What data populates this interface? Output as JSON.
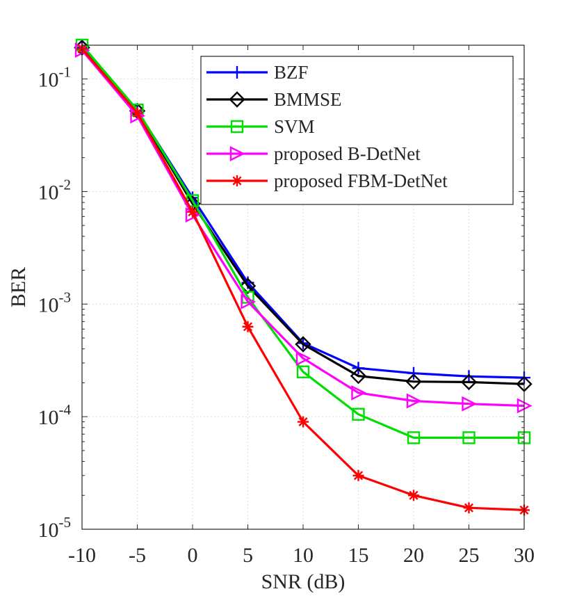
{
  "chart_data": {
    "type": "line",
    "title": "",
    "xlabel": "SNR (dB)",
    "ylabel": "BER",
    "yscale": "log",
    "xlim": [
      -10,
      30
    ],
    "ylim_exponents": [
      -5,
      -0.7
    ],
    "grid": true,
    "legend_position": "top-right",
    "x_ticks": [
      "-10",
      "-5",
      "0",
      "5",
      "10",
      "15",
      "20",
      "25",
      "30"
    ],
    "y_ticks": [
      {
        "base": "10",
        "exp": "-5",
        "value": 1e-05
      },
      {
        "base": "10",
        "exp": "-4",
        "value": 0.0001
      },
      {
        "base": "10",
        "exp": "-3",
        "value": 0.001
      },
      {
        "base": "10",
        "exp": "-2",
        "value": 0.01
      },
      {
        "base": "10",
        "exp": "-1",
        "value": 0.1
      }
    ],
    "x": [
      -10,
      -5,
      0,
      5,
      10,
      15,
      20,
      25,
      30
    ],
    "series": [
      {
        "name": "BZF",
        "color": "#0000ff",
        "marker": "plus",
        "values": [
          0.19,
          0.052,
          0.0088,
          0.00155,
          0.00045,
          0.00027,
          0.000243,
          0.000228,
          0.000222
        ]
      },
      {
        "name": "BMMSE",
        "color": "#000000",
        "marker": "diamond",
        "values": [
          0.19,
          0.052,
          0.0078,
          0.00145,
          0.00044,
          0.00023,
          0.000205,
          0.000203,
          0.000195
        ]
      },
      {
        "name": "SVM",
        "color": "#00dd00",
        "marker": "square",
        "values": [
          0.2,
          0.053,
          0.0083,
          0.00115,
          0.00025,
          0.000105,
          6.5e-05,
          6.5e-05,
          6.5e-05
        ]
      },
      {
        "name": "proposed B-DetNet",
        "color": "#ff00ff",
        "marker": "triangle-right",
        "values": [
          0.18,
          0.047,
          0.0062,
          0.00105,
          0.00033,
          0.000163,
          0.000138,
          0.00013,
          0.000125
        ]
      },
      {
        "name": "proposed FBM-DetNet",
        "color": "#ff0000",
        "marker": "asterisk",
        "values": [
          0.185,
          0.05,
          0.0066,
          0.00063,
          9e-05,
          3e-05,
          2e-05,
          1.55e-05,
          1.48e-05
        ]
      }
    ]
  }
}
